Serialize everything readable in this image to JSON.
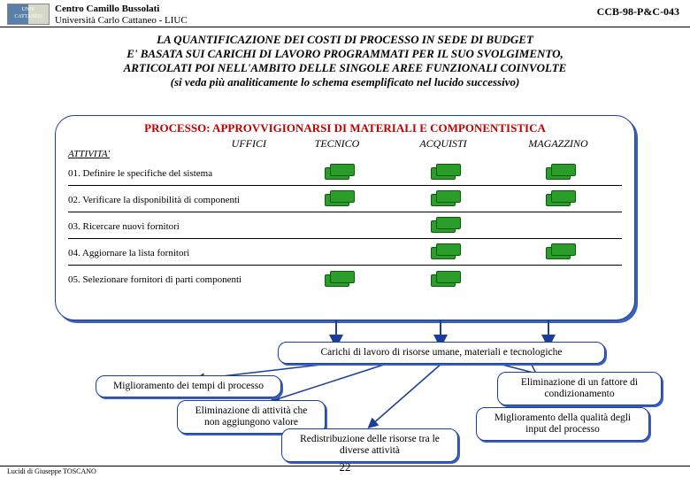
{
  "header": {
    "line1": "Centro Camillo Bussolati",
    "line2": "Università Carlo Cattaneo - LIUC",
    "code": "CCB-98-P&C-043"
  },
  "title": {
    "l1": "LA QUANTIFICAZIONE DEI COSTI DI PROCESSO IN SEDE DI BUDGET",
    "l2": "E' BASATA SUI CARICHI DI LAVORO PROGRAMMATI PER IL SUO SVOLGIMENTO,",
    "l3": "ARTICOLATI POI NELL'AMBITO DELLE SINGOLE AREE FUNZIONALI COINVOLTE",
    "l4": "(si veda più analiticamente lo schema esemplificato nel lucido successivo)"
  },
  "process": {
    "title": "PROCESSO: APPROVVIGIONARSI DI MATERIALI E COMPONENTISTICA",
    "col_uffici": "UFFICI",
    "col_tecnico": "TECNICO",
    "col_acquisti": "ACQUISTI",
    "col_magazzino": "MAGAZZINO",
    "attivita": "ATTIVITA'",
    "rows": [
      {
        "label": "01. Definire le specifiche del sistema",
        "cells": [
          true,
          true,
          true
        ]
      },
      {
        "label": "02. Verificare la disponibilità di componenti",
        "cells": [
          true,
          true,
          true
        ]
      },
      {
        "label": "03. Ricercare nuovi fornitori",
        "cells": [
          false,
          true,
          false
        ]
      },
      {
        "label": "04. Aggiornare la lista fornitori",
        "cells": [
          false,
          true,
          true
        ]
      },
      {
        "label": "05. Selezionare fornitori di parti componenti",
        "cells": [
          true,
          true,
          false
        ]
      }
    ]
  },
  "callouts": {
    "carichi": "Carichi di lavoro di risorse umane, materiali e tecnologiche",
    "tempi": "Miglioramento dei tempi di processo",
    "elim_att": "Eliminazione di attività che non aggiungono valore",
    "redistr": "Redistribuzione delle risorse tra le diverse attività",
    "elim_fatt": "Eliminazione di un fattore di condizionamento",
    "qualita": "Miglioramento della qualità degli input del processo"
  },
  "footer": {
    "author": "Lucidi di Giuseppe TOSCANO",
    "page": "22"
  },
  "colors": {
    "border_blue": "#1a3e9e",
    "shadow_blue": "#3a5fbf",
    "red": "#c00000",
    "cash_green": "#2a9d2a"
  }
}
